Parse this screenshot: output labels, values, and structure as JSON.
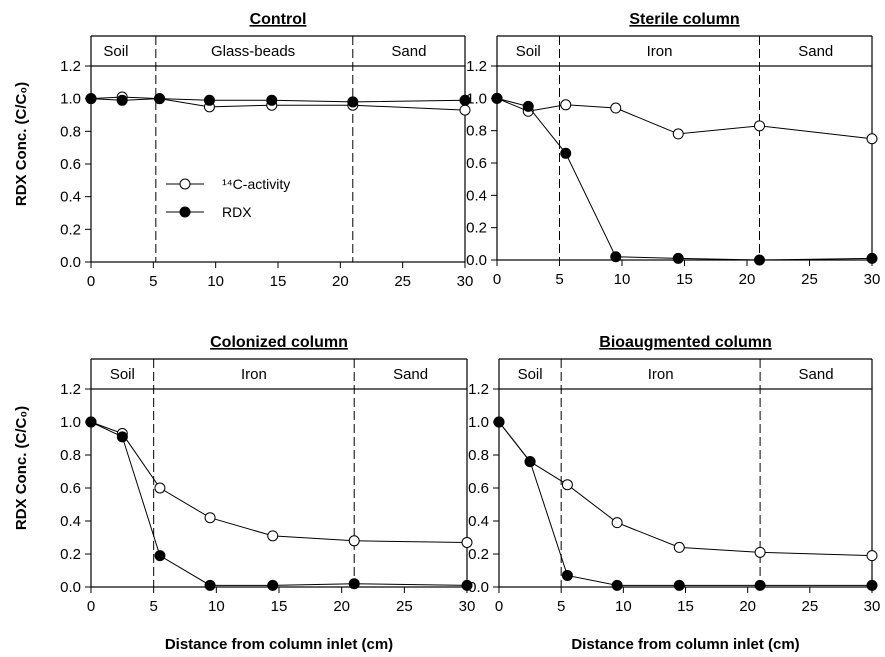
{
  "figure": {
    "ylabel": "RDX Conc. (C/C₀)",
    "xlabel": "Distance from column inlet (cm)",
    "legend": [
      {
        "label": "¹⁴C-activity",
        "marker": "open-circle"
      },
      {
        "label": "RDX",
        "marker": "filled-circle"
      }
    ]
  },
  "chart_data": [
    {
      "type": "line",
      "title": "Control",
      "xlabel": "",
      "ylabel": "RDX Conc. (C/C₀)",
      "xlim": [
        0,
        30
      ],
      "ylim": [
        0,
        1.2
      ],
      "xticks": [
        0,
        5,
        10,
        15,
        20,
        25,
        30
      ],
      "yticks": [
        "0.0",
        "0.2",
        "0.4",
        "0.6",
        "0.8",
        "1.0",
        "1.2"
      ],
      "boundaries": [
        5.2,
        21.0
      ],
      "zones": [
        {
          "label": "Soil",
          "x": 2.0
        },
        {
          "label": "Glass-beads",
          "x": 13.0
        },
        {
          "label": "Sand",
          "x": 25.5
        }
      ],
      "legend": "left-center",
      "series": [
        {
          "name": "¹⁴C-activity",
          "marker": "open-circle",
          "x": [
            0,
            2.5,
            5.5,
            9.5,
            14.5,
            21,
            30
          ],
          "y": [
            1.0,
            1.01,
            1.0,
            0.95,
            0.96,
            0.96,
            0.93
          ]
        },
        {
          "name": "RDX",
          "marker": "filled-circle",
          "x": [
            0,
            2.5,
            5.5,
            9.5,
            14.5,
            21,
            30
          ],
          "y": [
            1.0,
            0.99,
            1.0,
            0.99,
            0.99,
            0.98,
            0.99
          ]
        }
      ]
    },
    {
      "type": "line",
      "title": "Sterile column",
      "xlabel": "",
      "ylabel": "",
      "xlim": [
        0,
        30
      ],
      "ylim": [
        0,
        1.2
      ],
      "xticks": [
        0,
        5,
        10,
        15,
        20,
        25,
        30
      ],
      "yticks": [
        "0.0",
        "0.2",
        "0.4",
        "0.6",
        "0.8",
        "1.0",
        "1.2"
      ],
      "boundaries": [
        5.0,
        21.0
      ],
      "zones": [
        {
          "label": "Soil",
          "x": 2.5
        },
        {
          "label": "Iron",
          "x": 13.0
        },
        {
          "label": "Sand",
          "x": 25.5
        }
      ],
      "series": [
        {
          "name": "¹⁴C-activity",
          "marker": "open-circle",
          "x": [
            0,
            2.5,
            5.5,
            9.5,
            14.5,
            21,
            30
          ],
          "y": [
            1.0,
            0.92,
            0.96,
            0.94,
            0.78,
            0.83,
            0.75
          ]
        },
        {
          "name": "RDX",
          "marker": "filled-circle",
          "x": [
            0,
            2.5,
            5.5,
            9.5,
            14.5,
            21,
            30
          ],
          "y": [
            1.0,
            0.95,
            0.66,
            0.02,
            0.01,
            0.0,
            0.01
          ]
        }
      ]
    },
    {
      "type": "line",
      "title": "Colonized column",
      "xlabel": "Distance from column inlet (cm)",
      "ylabel": "RDX Conc. (C/C₀)",
      "xlim": [
        0,
        30
      ],
      "ylim": [
        0,
        1.2
      ],
      "xticks": [
        0,
        5,
        10,
        15,
        20,
        25,
        30
      ],
      "yticks": [
        "0.0",
        "0.2",
        "0.4",
        "0.6",
        "0.8",
        "1.0",
        "1.2"
      ],
      "boundaries": [
        5.0,
        21.0
      ],
      "zones": [
        {
          "label": "Soil",
          "x": 2.5
        },
        {
          "label": "Iron",
          "x": 13.0
        },
        {
          "label": "Sand",
          "x": 25.5
        }
      ],
      "series": [
        {
          "name": "¹⁴C-activity",
          "marker": "open-circle",
          "x": [
            0,
            2.5,
            5.5,
            9.5,
            14.5,
            21,
            30
          ],
          "y": [
            1.0,
            0.93,
            0.6,
            0.42,
            0.31,
            0.28,
            0.27
          ]
        },
        {
          "name": "RDX",
          "marker": "filled-circle",
          "x": [
            0,
            2.5,
            5.5,
            9.5,
            14.5,
            21,
            30
          ],
          "y": [
            1.0,
            0.91,
            0.19,
            0.01,
            0.01,
            0.02,
            0.01
          ]
        }
      ]
    },
    {
      "type": "line",
      "title": "Bioaugmented column",
      "xlabel": "Distance from column inlet (cm)",
      "ylabel": "",
      "xlim": [
        0,
        30
      ],
      "ylim": [
        0,
        1.2
      ],
      "xticks": [
        0,
        5,
        10,
        15,
        20,
        25,
        30
      ],
      "yticks": [
        "0.0",
        "0.2",
        "0.4",
        "0.6",
        "0.8",
        "1.0",
        "1.2"
      ],
      "boundaries": [
        5.0,
        21.0
      ],
      "zones": [
        {
          "label": "Soil",
          "x": 2.5
        },
        {
          "label": "Iron",
          "x": 13.0
        },
        {
          "label": "Sand",
          "x": 25.5
        }
      ],
      "series": [
        {
          "name": "¹⁴C-activity",
          "marker": "open-circle",
          "x": [
            0,
            2.5,
            5.5,
            9.5,
            14.5,
            21,
            30
          ],
          "y": [
            1.0,
            0.76,
            0.62,
            0.39,
            0.24,
            0.21,
            0.19
          ]
        },
        {
          "name": "RDX",
          "marker": "filled-circle",
          "x": [
            0,
            2.5,
            5.5,
            9.5,
            14.5,
            21,
            30
          ],
          "y": [
            1.0,
            0.76,
            0.07,
            0.01,
            0.01,
            0.01,
            0.01
          ]
        }
      ]
    }
  ]
}
